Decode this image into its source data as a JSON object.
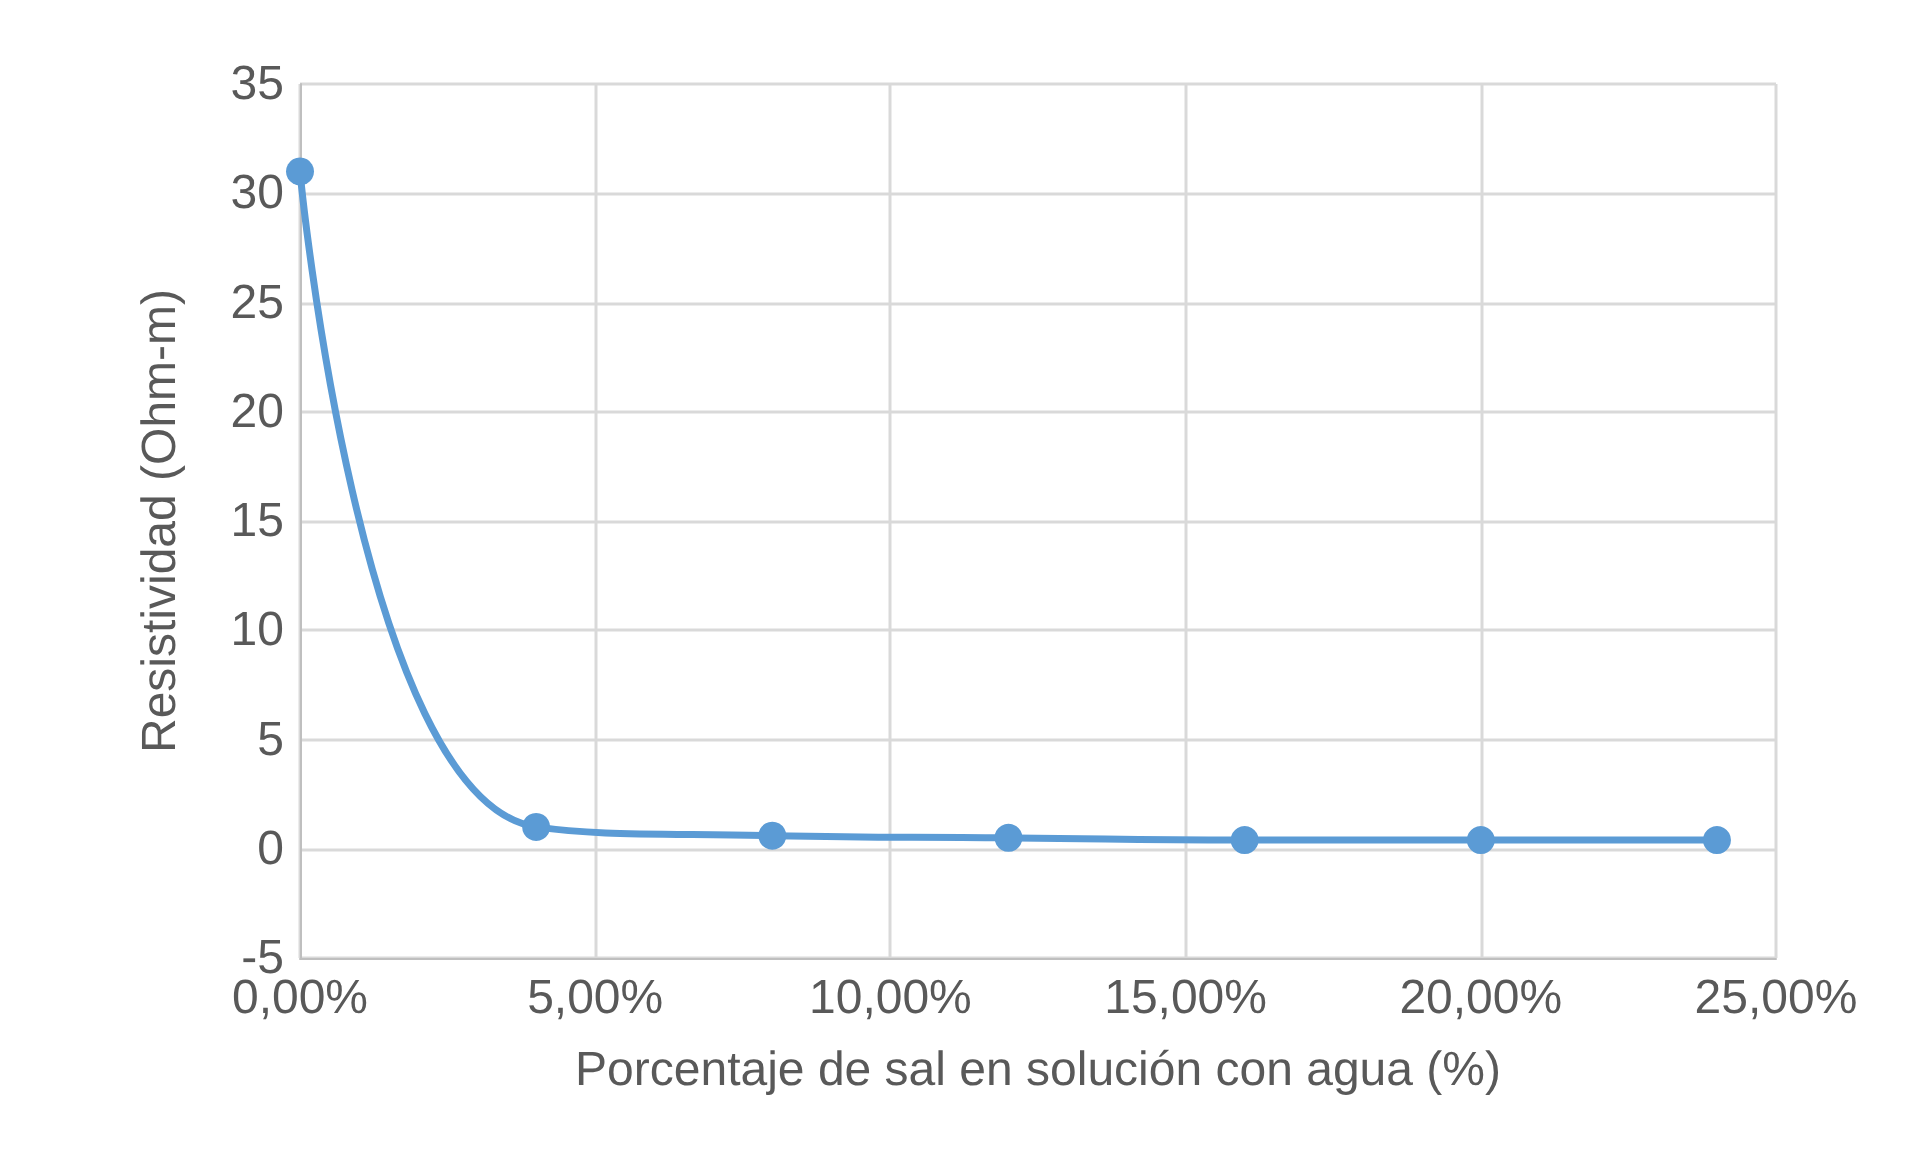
{
  "chart_data": {
    "type": "line",
    "xlabel": "Porcentaje de sal en solución con agua (%)",
    "ylabel": "Resistividad (Ohm-m)",
    "x": [
      0,
      4,
      8,
      12,
      16,
      20,
      24
    ],
    "series": [
      {
        "color": "#5b9bd5",
        "values": [
          31,
          1.0,
          0.6,
          0.5,
          0.4,
          0.4,
          0.4
        ]
      }
    ],
    "xlim": [
      0,
      25
    ],
    "xticks": [
      {
        "value": 0,
        "label": "0,00%"
      },
      {
        "value": 5,
        "label": "5,00%"
      },
      {
        "value": 10,
        "label": "10,00%"
      },
      {
        "value": 15,
        "label": "15,00%"
      },
      {
        "value": 20,
        "label": "20,00%"
      },
      {
        "value": 25,
        "label": "25,00%"
      }
    ],
    "ylim": [
      -5,
      35
    ],
    "yticks": [
      -5,
      0,
      5,
      10,
      15,
      20,
      25,
      30,
      35
    ],
    "grid": true,
    "marker": "circle",
    "line_style": "solid"
  }
}
